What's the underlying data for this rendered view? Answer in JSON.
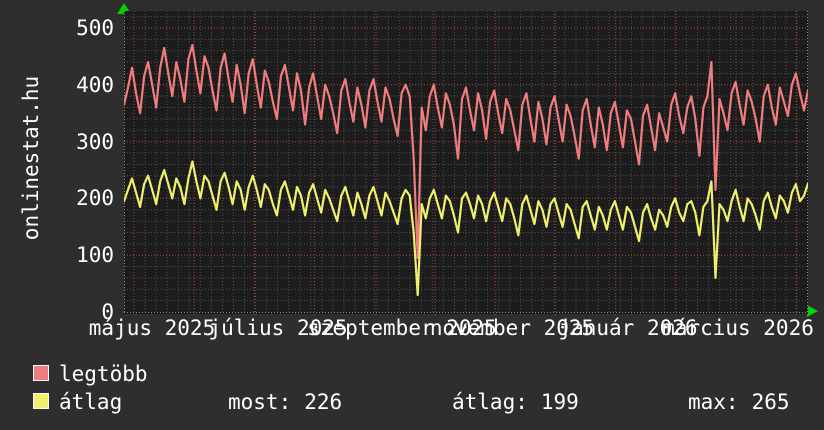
{
  "watermark": "onlinestat.hu",
  "legend": [
    {
      "label": "legtöbb",
      "color": "#ef7d7d"
    },
    {
      "label": "átlag",
      "color": "#f0f06e"
    }
  ],
  "stats": {
    "most_label": "most:",
    "most_value": "226",
    "atlag_label": "átlag:",
    "atlag_value": "199",
    "max_label": "max:",
    "max_value": "265"
  },
  "chart_data": {
    "type": "line",
    "title": "",
    "xlabel": "",
    "ylabel": "",
    "ylim": [
      0,
      500
    ],
    "y_ticks": [
      0,
      100,
      200,
      300,
      400,
      500
    ],
    "x_tick_labels": [
      "május 2025",
      "július 2025",
      "szeptember 2025",
      "november 2025",
      "január 2026",
      "március 2026"
    ],
    "grid": {
      "on": true,
      "minor_color": "#4f4f4f",
      "major_color": "#b04343"
    },
    "plot_background": "#1c1c1c",
    "axis_dot_color": "#8a8a8a",
    "arrow_color": "#00d400",
    "legend_position": "bottom-left",
    "series": [
      {
        "name": "legtöbb",
        "color": "#ef7d7d",
        "values": [
          365,
          395,
          430,
          385,
          350,
          415,
          440,
          400,
          360,
          430,
          465,
          420,
          380,
          440,
          410,
          370,
          445,
          470,
          425,
          385,
          450,
          430,
          390,
          355,
          430,
          455,
          410,
          370,
          435,
          400,
          350,
          420,
          445,
          400,
          360,
          425,
          405,
          370,
          340,
          415,
          435,
          395,
          355,
          420,
          390,
          330,
          395,
          420,
          380,
          340,
          400,
          380,
          350,
          315,
          390,
          410,
          370,
          335,
          395,
          365,
          325,
          390,
          410,
          370,
          335,
          395,
          375,
          340,
          310,
          385,
          400,
          380,
          270,
          95,
          360,
          320,
          380,
          400,
          360,
          325,
          385,
          365,
          330,
          270,
          375,
          395,
          355,
          320,
          385,
          355,
          305,
          370,
          390,
          350,
          315,
          375,
          355,
          320,
          285,
          365,
          385,
          340,
          300,
          370,
          340,
          295,
          360,
          380,
          340,
          300,
          365,
          345,
          310,
          270,
          355,
          375,
          330,
          290,
          360,
          330,
          285,
          350,
          370,
          330,
          290,
          355,
          340,
          300,
          260,
          345,
          365,
          325,
          285,
          350,
          325,
          300,
          365,
          385,
          345,
          315,
          360,
          380,
          340,
          275,
          360,
          380,
          440,
          215,
          375,
          350,
          320,
          385,
          405,
          365,
          330,
          390,
          370,
          340,
          300,
          380,
          400,
          360,
          330,
          395,
          370,
          345,
          400,
          420,
          385,
          355,
          390
        ]
      },
      {
        "name": "átlag",
        "color": "#f0f06e",
        "values": [
          195,
          215,
          235,
          210,
          185,
          225,
          240,
          215,
          190,
          230,
          250,
          225,
          200,
          235,
          220,
          190,
          235,
          265,
          230,
          200,
          240,
          230,
          205,
          180,
          230,
          245,
          220,
          190,
          230,
          215,
          180,
          220,
          240,
          215,
          185,
          225,
          215,
          190,
          170,
          215,
          230,
          205,
          180,
          220,
          205,
          170,
          210,
          225,
          200,
          175,
          215,
          200,
          180,
          160,
          205,
          220,
          195,
          170,
          210,
          190,
          165,
          205,
          220,
          195,
          170,
          210,
          195,
          175,
          155,
          200,
          215,
          205,
          140,
          30,
          190,
          165,
          200,
          215,
          190,
          165,
          205,
          195,
          170,
          140,
          200,
          210,
          190,
          165,
          205,
          190,
          160,
          195,
          210,
          185,
          160,
          200,
          190,
          165,
          135,
          190,
          205,
          180,
          155,
          195,
          180,
          150,
          190,
          200,
          175,
          150,
          190,
          180,
          155,
          130,
          185,
          195,
          170,
          145,
          185,
          170,
          145,
          180,
          195,
          170,
          145,
          185,
          175,
          150,
          125,
          175,
          190,
          165,
          145,
          180,
          170,
          150,
          185,
          200,
          175,
          160,
          190,
          195,
          175,
          135,
          185,
          195,
          230,
          60,
          190,
          180,
          160,
          195,
          215,
          185,
          160,
          200,
          190,
          170,
          145,
          195,
          210,
          185,
          165,
          205,
          195,
          175,
          210,
          225,
          195,
          205,
          226
        ]
      }
    ]
  }
}
